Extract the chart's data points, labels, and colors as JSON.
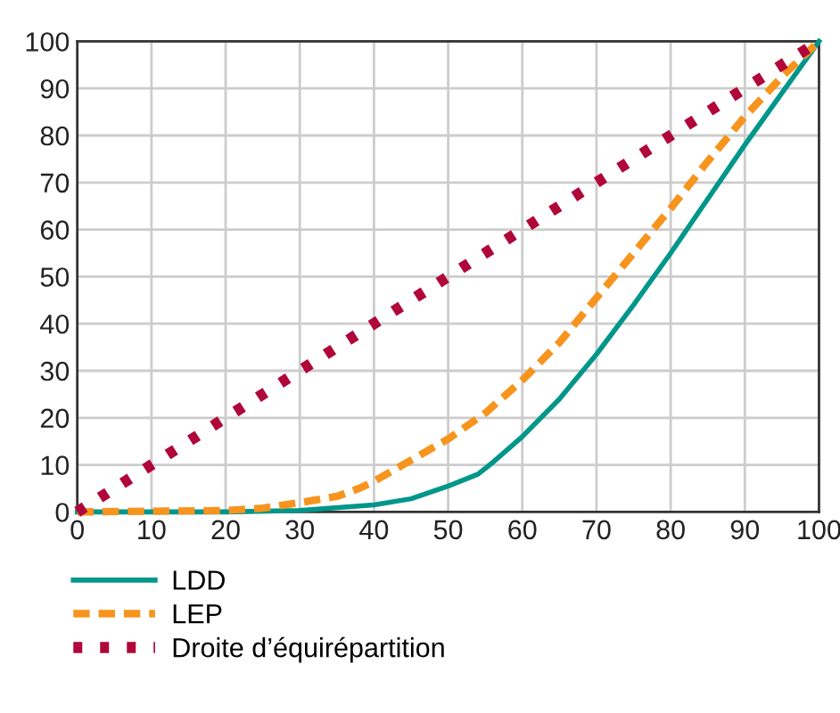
{
  "chart_data": {
    "type": "line",
    "xlim": [
      0,
      100
    ],
    "ylim": [
      0,
      100
    ],
    "xticks": [
      0,
      10,
      20,
      30,
      40,
      50,
      60,
      70,
      80,
      90,
      100
    ],
    "yticks": [
      0,
      10,
      20,
      30,
      40,
      50,
      60,
      70,
      80,
      90,
      100
    ],
    "grid": true,
    "legend": "bottom",
    "series": [
      {
        "name": "LDD",
        "color": "#00968a",
        "line_style": "solid",
        "x": [
          0,
          20,
          30,
          40,
          45,
          50,
          54,
          56,
          60,
          65,
          70,
          75,
          80,
          85,
          90,
          95,
          100
        ],
        "values": [
          0,
          0,
          0.3,
          1.5,
          2.8,
          5.5,
          8,
          10.5,
          16,
          24,
          33.5,
          44,
          55,
          66.5,
          78,
          89,
          100
        ]
      },
      {
        "name": "LEP",
        "color": "#f7941d",
        "line_style": "dashed",
        "x": [
          0,
          20,
          25,
          30,
          35,
          38,
          40,
          45,
          50,
          55,
          60,
          65,
          70,
          75,
          80,
          85,
          90,
          95,
          100
        ],
        "values": [
          0,
          0.3,
          0.8,
          2,
          3.3,
          5,
          6.5,
          11,
          15.5,
          21,
          28,
          36,
          45.5,
          55,
          64.5,
          74.5,
          84,
          92.5,
          100
        ]
      },
      {
        "name": "Droite d’équirépartition",
        "color": "#b0063a",
        "line_style": "dotted",
        "x": [
          0,
          100
        ],
        "values": [
          0,
          100
        ]
      }
    ]
  }
}
